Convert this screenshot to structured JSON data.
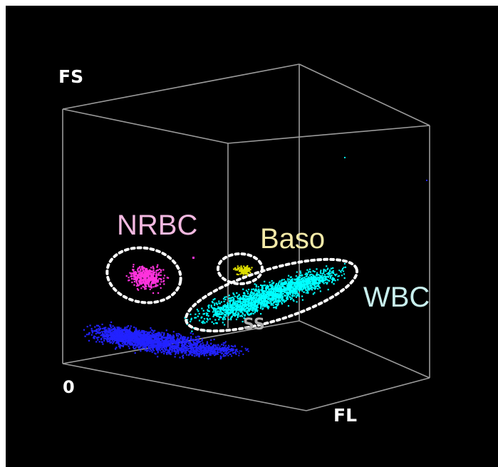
{
  "chart_data": {
    "type": "scatter",
    "title": "",
    "axes": {
      "vertical": "FS",
      "origin": "0",
      "depth": "FL",
      "inner": "SS"
    },
    "grid": false,
    "clusters": [
      {
        "name": "NRBC",
        "color": "#ff33dd",
        "label_color": "#f2b8e0",
        "gated": true
      },
      {
        "name": "Baso",
        "color": "#dddd00",
        "label_color": "#f4eaa8",
        "gated": true
      },
      {
        "name": "WBC",
        "color": "#00ffff",
        "label_color": "#c8f0ee",
        "gated": true
      },
      {
        "name": "",
        "color": "#2222ff",
        "label_color": "",
        "gated": false
      }
    ]
  }
}
